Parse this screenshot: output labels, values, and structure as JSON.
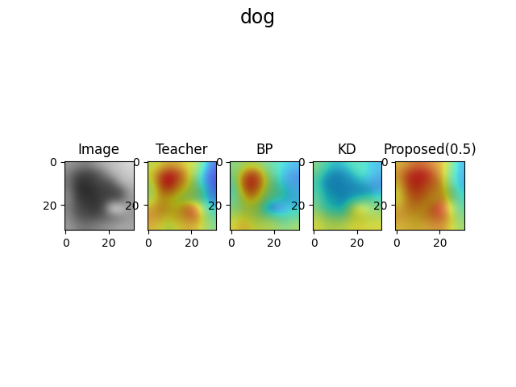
{
  "title": "dog",
  "chart_data": [
    {
      "type": "image",
      "title": "Image",
      "xlim": [
        -0.5,
        31.5
      ],
      "ylim": [
        31.5,
        -0.5
      ],
      "xticks": [
        0,
        20
      ],
      "yticks": [
        0,
        20
      ],
      "zlim": [
        0,
        1
      ],
      "cells": [
        [
          0.6,
          0.55,
          0.5,
          0.6,
          0.7,
          0.75,
          0.8,
          0.85
        ],
        [
          0.5,
          0.3,
          0.25,
          0.3,
          0.45,
          0.7,
          0.75,
          0.8
        ],
        [
          0.45,
          0.2,
          0.2,
          0.25,
          0.3,
          0.35,
          0.7,
          0.75
        ],
        [
          0.5,
          0.2,
          0.15,
          0.2,
          0.25,
          0.25,
          0.3,
          0.65
        ],
        [
          0.55,
          0.25,
          0.2,
          0.2,
          0.25,
          0.3,
          0.35,
          0.6
        ],
        [
          0.5,
          0.3,
          0.25,
          0.2,
          0.3,
          0.9,
          0.85,
          0.6
        ],
        [
          0.55,
          0.35,
          0.3,
          0.3,
          0.35,
          0.4,
          0.5,
          0.6
        ],
        [
          0.6,
          0.5,
          0.45,
          0.5,
          0.55,
          0.6,
          0.65,
          0.65
        ]
      ]
    },
    {
      "type": "heatmap",
      "title": "Teacher",
      "xlim": [
        -0.5,
        31.5
      ],
      "ylim": [
        31.5,
        -0.5
      ],
      "xticks": [
        0,
        20
      ],
      "yticks": [
        0,
        20
      ],
      "zlim": [
        0,
        1
      ],
      "cells": [
        [
          0.6,
          0.65,
          0.7,
          0.7,
          0.65,
          0.6,
          0.4,
          0.2
        ],
        [
          0.65,
          0.8,
          0.9,
          0.85,
          0.7,
          0.55,
          0.3,
          0.15
        ],
        [
          0.6,
          0.85,
          0.95,
          0.8,
          0.7,
          0.5,
          0.3,
          0.15
        ],
        [
          0.55,
          0.75,
          0.8,
          0.7,
          0.6,
          0.55,
          0.4,
          0.2
        ],
        [
          0.6,
          0.7,
          0.65,
          0.6,
          0.55,
          0.5,
          0.4,
          0.25
        ],
        [
          0.7,
          0.75,
          0.7,
          0.65,
          0.8,
          0.85,
          0.5,
          0.35
        ],
        [
          0.75,
          0.7,
          0.65,
          0.7,
          0.75,
          0.8,
          0.6,
          0.45
        ],
        [
          0.7,
          0.65,
          0.6,
          0.65,
          0.7,
          0.7,
          0.6,
          0.5
        ]
      ]
    },
    {
      "type": "heatmap",
      "title": "BP",
      "xlim": [
        -0.5,
        31.5
      ],
      "ylim": [
        31.5,
        -0.5
      ],
      "xticks": [
        0,
        20
      ],
      "yticks": [
        0,
        20
      ],
      "zlim": [
        0,
        1
      ],
      "cells": [
        [
          0.5,
          0.55,
          0.6,
          0.55,
          0.45,
          0.4,
          0.35,
          0.3
        ],
        [
          0.5,
          0.7,
          0.85,
          0.75,
          0.5,
          0.4,
          0.3,
          0.25
        ],
        [
          0.45,
          0.8,
          0.9,
          0.8,
          0.55,
          0.4,
          0.3,
          0.25
        ],
        [
          0.4,
          0.7,
          0.85,
          0.7,
          0.5,
          0.45,
          0.35,
          0.3
        ],
        [
          0.45,
          0.6,
          0.7,
          0.6,
          0.45,
          0.4,
          0.35,
          0.3
        ],
        [
          0.5,
          0.55,
          0.6,
          0.5,
          0.25,
          0.2,
          0.3,
          0.35
        ],
        [
          0.6,
          0.65,
          0.6,
          0.55,
          0.5,
          0.45,
          0.4,
          0.45
        ],
        [
          0.65,
          0.7,
          0.65,
          0.6,
          0.6,
          0.55,
          0.5,
          0.55
        ]
      ]
    },
    {
      "type": "heatmap",
      "title": "KD",
      "xlim": [
        -0.5,
        31.5
      ],
      "ylim": [
        31.5,
        -0.5
      ],
      "xticks": [
        0,
        20
      ],
      "yticks": [
        0,
        20
      ],
      "zlim": [
        0,
        1
      ],
      "cells": [
        [
          0.5,
          0.4,
          0.35,
          0.35,
          0.4,
          0.4,
          0.35,
          0.3
        ],
        [
          0.45,
          0.35,
          0.3,
          0.3,
          0.35,
          0.4,
          0.35,
          0.3
        ],
        [
          0.4,
          0.3,
          0.3,
          0.3,
          0.3,
          0.35,
          0.3,
          0.25
        ],
        [
          0.4,
          0.35,
          0.3,
          0.3,
          0.3,
          0.3,
          0.3,
          0.3
        ],
        [
          0.45,
          0.35,
          0.35,
          0.3,
          0.35,
          0.4,
          0.45,
          0.4
        ],
        [
          0.5,
          0.4,
          0.35,
          0.35,
          0.6,
          0.65,
          0.55,
          0.5
        ],
        [
          0.6,
          0.55,
          0.5,
          0.5,
          0.6,
          0.65,
          0.6,
          0.6
        ],
        [
          0.65,
          0.6,
          0.6,
          0.6,
          0.65,
          0.65,
          0.65,
          0.65
        ]
      ]
    },
    {
      "type": "heatmap",
      "title": "Proposed(0.5)",
      "xlim": [
        -0.5,
        31.5
      ],
      "ylim": [
        31.5,
        -0.5
      ],
      "xticks": [
        0,
        20
      ],
      "yticks": [
        0,
        20
      ],
      "zlim": [
        0,
        1
      ],
      "cells": [
        [
          0.7,
          0.75,
          0.8,
          0.8,
          0.75,
          0.7,
          0.5,
          0.3
        ],
        [
          0.75,
          0.85,
          0.9,
          0.9,
          0.8,
          0.7,
          0.45,
          0.3
        ],
        [
          0.7,
          0.85,
          0.9,
          0.85,
          0.8,
          0.7,
          0.45,
          0.3
        ],
        [
          0.65,
          0.8,
          0.85,
          0.8,
          0.75,
          0.7,
          0.5,
          0.35
        ],
        [
          0.65,
          0.75,
          0.8,
          0.75,
          0.7,
          0.75,
          0.55,
          0.4
        ],
        [
          0.7,
          0.75,
          0.75,
          0.7,
          0.85,
          0.9,
          0.6,
          0.45
        ],
        [
          0.75,
          0.7,
          0.7,
          0.75,
          0.8,
          0.8,
          0.65,
          0.5
        ],
        [
          0.7,
          0.7,
          0.7,
          0.7,
          0.75,
          0.75,
          0.65,
          0.55
        ]
      ]
    }
  ]
}
